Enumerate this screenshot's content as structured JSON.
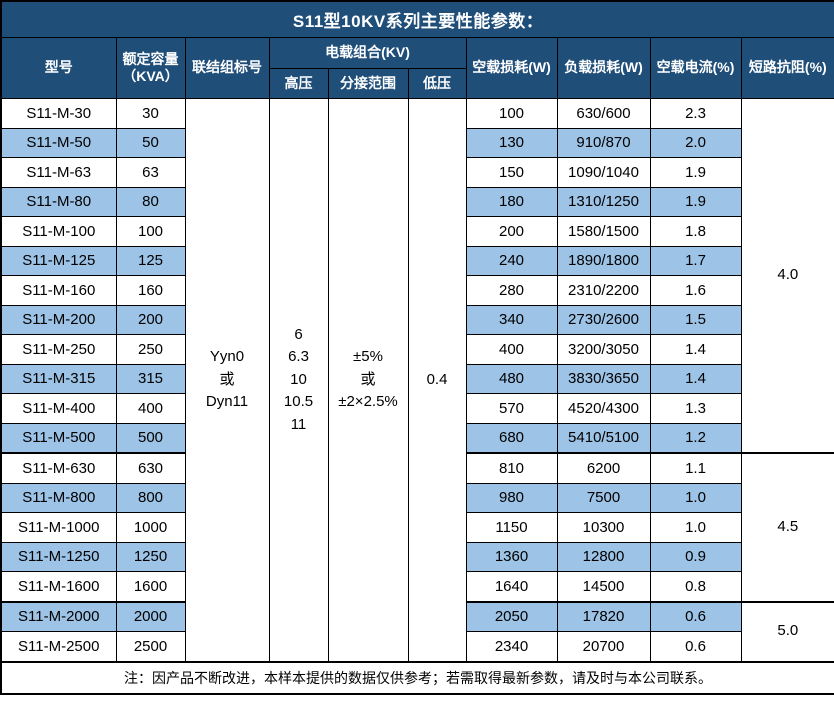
{
  "title": "S11型10KV系列主要性能参数：",
  "table": {
    "headers": {
      "model": "型号",
      "capacity": "额定容量\n（KVA）",
      "connection": "联结组标号",
      "voltage_group": "电载组合(KV)",
      "hv": "高压",
      "tap_range": "分接范围",
      "lv": "低压",
      "no_load_loss": "空载损耗(W)",
      "load_loss": "负载损耗(W)",
      "no_load_current": "空载电流(%)",
      "impedance": "短路抗阻(%)"
    },
    "merged": {
      "connection": "Yyn0\n或\nDyn11",
      "hv": "6\n6.3\n10\n10.5\n11",
      "tap": "±5%\n或\n±2×2.5%",
      "lv": "0.4"
    },
    "rows": [
      {
        "model": "S11-M-30",
        "kva": "30",
        "no_load_loss": "100",
        "load_loss": "630/600",
        "no_load_current": "2.3"
      },
      {
        "model": "S11-M-50",
        "kva": "50",
        "no_load_loss": "130",
        "load_loss": "910/870",
        "no_load_current": "2.0"
      },
      {
        "model": "S11-M-63",
        "kva": "63",
        "no_load_loss": "150",
        "load_loss": "1090/1040",
        "no_load_current": "1.9"
      },
      {
        "model": "S11-M-80",
        "kva": "80",
        "no_load_loss": "180",
        "load_loss": "1310/1250",
        "no_load_current": "1.9"
      },
      {
        "model": "S11-M-100",
        "kva": "100",
        "no_load_loss": "200",
        "load_loss": "1580/1500",
        "no_load_current": "1.8"
      },
      {
        "model": "S11-M-125",
        "kva": "125",
        "no_load_loss": "240",
        "load_loss": "1890/1800",
        "no_load_current": "1.7"
      },
      {
        "model": "S11-M-160",
        "kva": "160",
        "no_load_loss": "280",
        "load_loss": "2310/2200",
        "no_load_current": "1.6"
      },
      {
        "model": "S11-M-200",
        "kva": "200",
        "no_load_loss": "340",
        "load_loss": "2730/2600",
        "no_load_current": "1.5"
      },
      {
        "model": "S11-M-250",
        "kva": "250",
        "no_load_loss": "400",
        "load_loss": "3200/3050",
        "no_load_current": "1.4"
      },
      {
        "model": "S11-M-315",
        "kva": "315",
        "no_load_loss": "480",
        "load_loss": "3830/3650",
        "no_load_current": "1.4"
      },
      {
        "model": "S11-M-400",
        "kva": "400",
        "no_load_loss": "570",
        "load_loss": "4520/4300",
        "no_load_current": "1.3"
      },
      {
        "model": "S11-M-500",
        "kva": "500",
        "no_load_loss": "680",
        "load_loss": "5410/5100",
        "no_load_current": "1.2"
      },
      {
        "model": "S11-M-630",
        "kva": "630",
        "no_load_loss": "810",
        "load_loss": "6200",
        "no_load_current": "1.1"
      },
      {
        "model": "S11-M-800",
        "kva": "800",
        "no_load_loss": "980",
        "load_loss": "7500",
        "no_load_current": "1.0"
      },
      {
        "model": "S11-M-1000",
        "kva": "1000",
        "no_load_loss": "1150",
        "load_loss": "10300",
        "no_load_current": "1.0"
      },
      {
        "model": "S11-M-1250",
        "kva": "1250",
        "no_load_loss": "1360",
        "load_loss": "12800",
        "no_load_current": "0.9"
      },
      {
        "model": "S11-M-1600",
        "kva": "1600",
        "no_load_loss": "1640",
        "load_loss": "14500",
        "no_load_current": "0.8"
      },
      {
        "model": "S11-M-2000",
        "kva": "2000",
        "no_load_loss": "2050",
        "load_loss": "17820",
        "no_load_current": "0.6"
      },
      {
        "model": "S11-M-2500",
        "kva": "2500",
        "no_load_loss": "2340",
        "load_loss": "20700",
        "no_load_current": "0.6"
      }
    ],
    "impedance_groups": [
      {
        "value": "4.0",
        "rows": 12
      },
      {
        "value": "4.5",
        "rows": 5
      },
      {
        "value": "5.0",
        "rows": 2
      }
    ]
  },
  "footer_note": "注：因产品不断改进，本样本提供的数据仅供参考；若需取得最新参数，请及时与本公司联系。",
  "colors": {
    "header_bg": "#1F4E79",
    "header_text": "#FFFFFF",
    "row_alt_bg": "#9DC3E6",
    "row_bg": "#FFFFFF",
    "border": "#000000"
  }
}
